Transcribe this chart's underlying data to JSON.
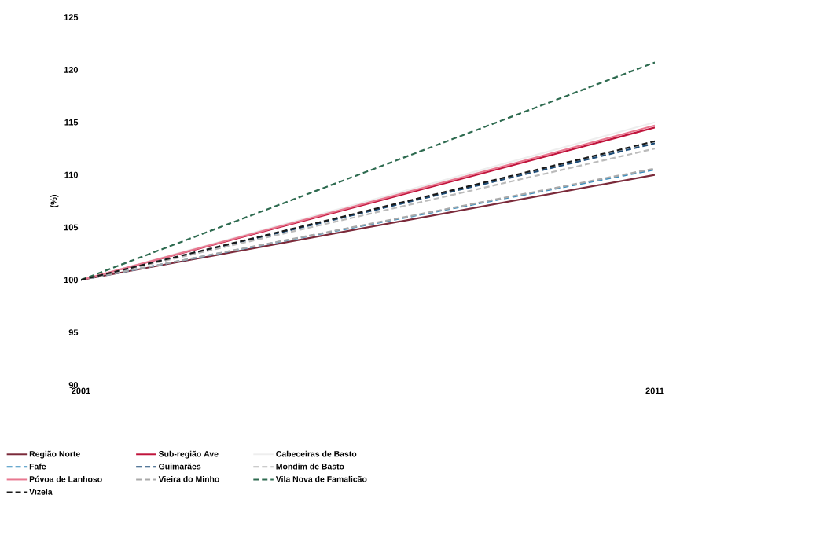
{
  "chart_data": {
    "type": "line",
    "ylabel": "(%)",
    "x": [
      2001,
      2011
    ],
    "xlim": [
      2001,
      2011
    ],
    "xticks": [
      2001,
      2011
    ],
    "ylim": [
      90,
      125
    ],
    "yticks": [
      90,
      95,
      100,
      105,
      110,
      115,
      120,
      125
    ],
    "grid": false,
    "legend": "bottom",
    "marker": "none",
    "series": [
      {
        "name": "Região Norte",
        "color": "#7b2a3a",
        "line_style": "solid",
        "values": [
          100,
          110.0
        ]
      },
      {
        "name": "Sub-região Ave",
        "color": "#c0143c",
        "line_style": "solid",
        "values": [
          100,
          114.5
        ]
      },
      {
        "name": "Cabeceiras de Basto",
        "color": "#eeeeee",
        "line_style": "solid",
        "values": [
          100,
          115.0
        ]
      },
      {
        "name": "Fafe",
        "color": "#3a8fc0",
        "line_style": "dashed",
        "values": [
          100,
          110.5
        ]
      },
      {
        "name": "Guimarães",
        "color": "#1f4e79",
        "line_style": "dashed",
        "values": [
          100,
          113.0
        ]
      },
      {
        "name": "Mondim de Basto",
        "color": "#bbbbbb",
        "line_style": "dashed",
        "values": [
          100,
          112.5
        ]
      },
      {
        "name": "Póvoa de Lanhoso",
        "color": "#e87890",
        "line_style": "solid",
        "values": [
          100,
          114.7
        ]
      },
      {
        "name": "Vieira do Minho",
        "color": "#aaaaaa",
        "line_style": "dashed",
        "values": [
          100,
          110.6
        ]
      },
      {
        "name": "Vila Nova de Famalicão",
        "color": "#2e6b50",
        "line_style": "dashed",
        "values": [
          100,
          120.7
        ]
      },
      {
        "name": "Vizela",
        "color": "#1a1a1a",
        "line_style": "dashed",
        "values": [
          100,
          113.2
        ]
      }
    ]
  }
}
